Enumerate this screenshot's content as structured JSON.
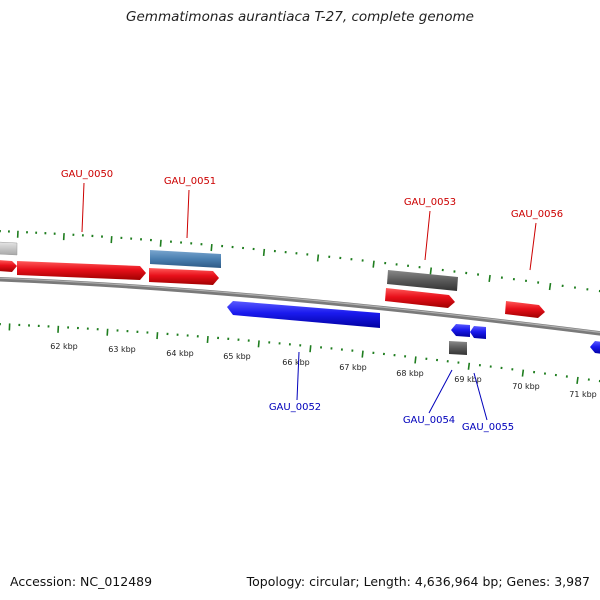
{
  "title": "Gemmatimonas aurantiaca T-27, complete genome",
  "footer": {
    "accession": "Accession: NC_012489",
    "summary": "Topology: circular; Length: 4,636,964 bp; Genes: 3,987"
  },
  "colors": {
    "forward_cds": "#e8101a",
    "reverse_cds": "#1a1aee",
    "highlight_cds": "#4a7fb0",
    "pseudo": "#5a5a5a",
    "rna": "#c8c8c8",
    "ticks": "#1e7d1e",
    "forward_label": "#cc0000",
    "reverse_label": "#0000bb",
    "backbone": "#7a7a7a"
  },
  "ruler": {
    "unit": "kbp",
    "labels": [
      "62 kbp",
      "63 kbp",
      "64 kbp",
      "65 kbp",
      "66 kbp",
      "67 kbp",
      "68 kbp",
      "69 kbp",
      "70 kbp",
      "71 kbp"
    ]
  },
  "genes": {
    "forward": [
      "GAU_0050",
      "GAU_0051",
      "GAU_0053",
      "GAU_0056"
    ],
    "reverse": [
      "GAU_0052",
      "GAU_0054",
      "GAU_0055"
    ]
  }
}
